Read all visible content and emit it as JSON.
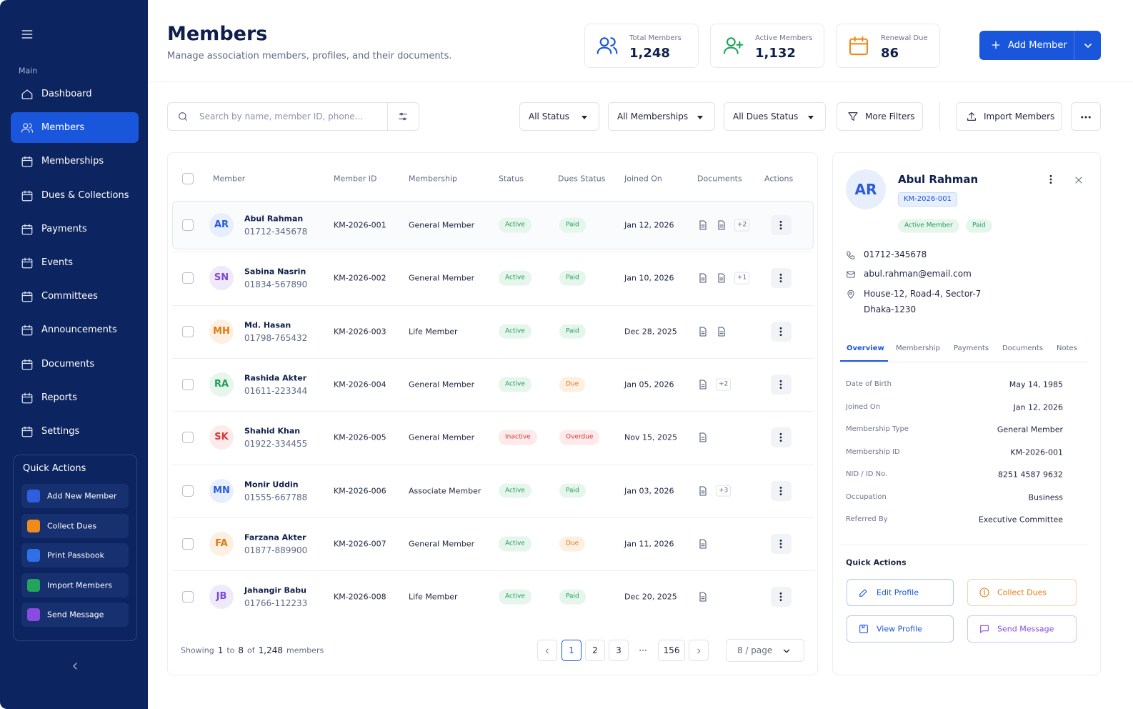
{
  "sidebar": {
    "section": "Main",
    "nav": [
      "Dashboard",
      "Members",
      "Memberships",
      "Dues & Collections",
      "Payments",
      "Events",
      "Committees",
      "Announcements",
      "Documents",
      "Reports",
      "Settings"
    ],
    "active": 1,
    "quick_actions": {
      "title": "Quick Actions",
      "items": [
        {
          "label": "Add New Member",
          "color": "#2f5fe0"
        },
        {
          "label": "Collect Dues",
          "color": "#f08a1c"
        },
        {
          "label": "Print Passbook",
          "color": "#2f6fe8"
        },
        {
          "label": "Import Members",
          "color": "#22a45d"
        },
        {
          "label": "Send Message",
          "color": "#8a4be0"
        }
      ]
    }
  },
  "header": {
    "title": "Members",
    "subtitle": "Manage association members, profiles, and their documents.",
    "stats": [
      {
        "label": "Total Members",
        "value": "1,248",
        "color": "#1a56db"
      },
      {
        "label": "Active Members",
        "value": "1,132",
        "color": "#22a45d"
      },
      {
        "label": "Renewal Due",
        "value": "86",
        "color": "#f08a1c"
      }
    ],
    "add_button": "Add Member"
  },
  "toolbar": {
    "search_placeholder": "Search by name, member ID, phone...",
    "filters": [
      "All Status",
      "All Memberships",
      "All Dues Status"
    ],
    "more_filters": "More Filters",
    "import": "Import Members"
  },
  "table": {
    "columns": [
      "Member",
      "Member ID",
      "Membership",
      "Status",
      "Dues Status",
      "Joined On",
      "Documents",
      "Actions"
    ],
    "rows": [
      {
        "initials": "AR",
        "tone": "blue",
        "name": "Abul Rahman",
        "phone": "01712-345678",
        "id": "KM-2026-001",
        "membership": "General Member",
        "status": "Active",
        "status_tone": "green",
        "dues": "Paid",
        "dues_tone": "green",
        "joined": "Jan 12, 2026",
        "doc_icons": 2,
        "more": "+2"
      },
      {
        "initials": "SN",
        "tone": "purple",
        "name": "Sabina Nasrin",
        "phone": "01834-567890",
        "id": "KM-2026-002",
        "membership": "General Member",
        "status": "Active",
        "status_tone": "green",
        "dues": "Paid",
        "dues_tone": "green",
        "joined": "Jan 10, 2026",
        "doc_icons": 2,
        "more": "+1"
      },
      {
        "initials": "MH",
        "tone": "orange",
        "name": "Md. Hasan",
        "phone": "01798-765432",
        "id": "KM-2026-003",
        "membership": "Life Member",
        "status": "Active",
        "status_tone": "green",
        "dues": "Paid",
        "dues_tone": "green",
        "joined": "Dec 28, 2025",
        "doc_icons": 2,
        "more": null
      },
      {
        "initials": "RA",
        "tone": "green",
        "name": "Rashida Akter",
        "phone": "01611-223344",
        "id": "KM-2026-004",
        "membership": "General Member",
        "status": "Active",
        "status_tone": "green",
        "dues": "Due",
        "dues_tone": "orange",
        "joined": "Jan 05, 2026",
        "doc_icons": 1,
        "more": "+2"
      },
      {
        "initials": "SK",
        "tone": "red",
        "name": "Shahid Khan",
        "phone": "01922-334455",
        "id": "KM-2026-005",
        "membership": "General Member",
        "status": "Inactive",
        "status_tone": "red",
        "dues": "Overdue",
        "dues_tone": "red",
        "joined": "Nov 15, 2025",
        "doc_icons": 1,
        "more": null
      },
      {
        "initials": "MN",
        "tone": "blue",
        "name": "Monir Uddin",
        "phone": "01555-667788",
        "id": "KM-2026-006",
        "membership": "Associate Member",
        "status": "Active",
        "status_tone": "green",
        "dues": "Paid",
        "dues_tone": "green",
        "joined": "Jan 03, 2026",
        "doc_icons": 1,
        "more": "+3"
      },
      {
        "initials": "FA",
        "tone": "orange",
        "name": "Farzana Akter",
        "phone": "01877-889900",
        "id": "KM-2026-007",
        "membership": "General Member",
        "status": "Active",
        "status_tone": "green",
        "dues": "Due",
        "dues_tone": "orange",
        "joined": "Jan 11, 2026",
        "doc_icons": 1,
        "more": null
      },
      {
        "initials": "JB",
        "tone": "purple",
        "name": "Jahangir Babu",
        "phone": "01766-112233",
        "id": "KM-2026-008",
        "membership": "Life Member",
        "status": "Active",
        "status_tone": "green",
        "dues": "Paid",
        "dues_tone": "green",
        "joined": "Dec 20, 2025",
        "doc_icons": 1,
        "more": null
      }
    ]
  },
  "pagination": {
    "showing": [
      "Showing",
      "1",
      "to",
      "8",
      "of",
      "1,248",
      "members"
    ],
    "pages": [
      "1",
      "2",
      "3",
      "···",
      "156"
    ],
    "current": 0,
    "per_page": "8 / page"
  },
  "detail": {
    "initials": "AR",
    "name": "Abul Rahman",
    "id": "KM-2026-001",
    "badges": [
      "Active Member",
      "Paid"
    ],
    "phone": "01712-345678",
    "email": "abul.rahman@email.com",
    "address": [
      "House-12, Road-4, Sector-7",
      "Dhaka-1230"
    ],
    "tabs": [
      "Overview",
      "Membership",
      "Payments",
      "Documents",
      "Notes"
    ],
    "fields": [
      [
        "Date of Birth",
        "May 14, 1985"
      ],
      [
        "Joined On",
        "Jan 12, 2026"
      ],
      [
        "Membership Type",
        "General Member"
      ],
      [
        "Membership ID",
        "KM-2026-001"
      ],
      [
        "NID / ID No.",
        "8251 4587 9632"
      ],
      [
        "Occupation",
        "Business"
      ],
      [
        "Referred By",
        "Executive Committee"
      ]
    ],
    "quick_actions_title": "Quick Actions",
    "actions": [
      {
        "label": "Edit Profile",
        "color": "#1a56db"
      },
      {
        "label": "Collect Dues",
        "color": "#e07a10"
      },
      {
        "label": "View Profile",
        "color": "#1a56db"
      },
      {
        "label": "Send Message",
        "color": "#8a4be0"
      }
    ]
  }
}
